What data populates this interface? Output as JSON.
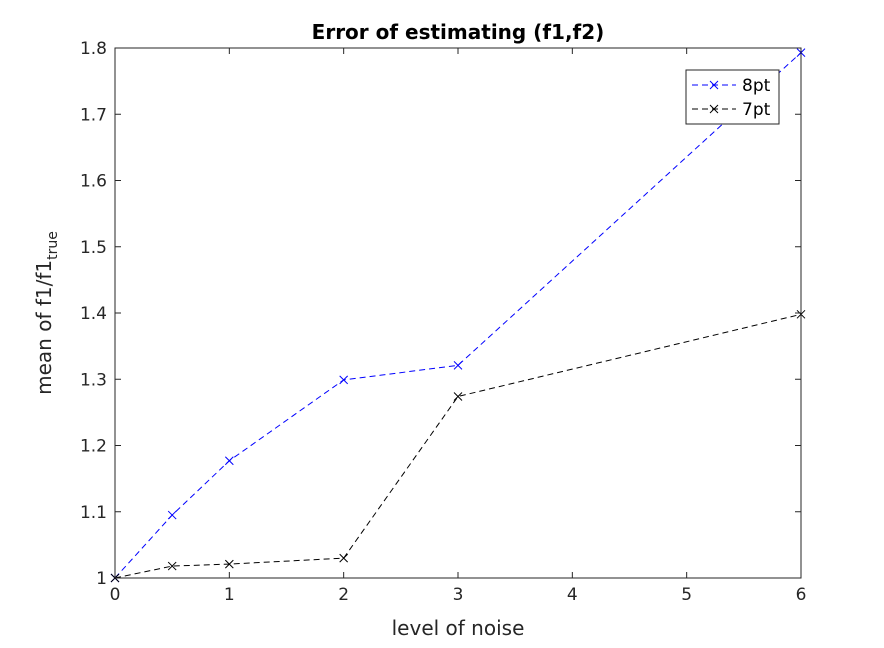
{
  "chart_data": {
    "type": "line",
    "title": "Error of estimating (f1,f2)",
    "xlabel": "level of noise",
    "ylabel": {
      "main": "mean of f1/f1",
      "subscript": "true"
    },
    "xlim": [
      0,
      6
    ],
    "ylim": [
      1,
      1.8
    ],
    "xticks": [
      "0",
      "1",
      "2",
      "3",
      "4",
      "5",
      "6"
    ],
    "yticks": [
      "1",
      "1.1",
      "1.2",
      "1.3",
      "1.4",
      "1.5",
      "1.6",
      "1.7",
      "1.8"
    ],
    "grid": false,
    "legend_position": "top-right",
    "series": [
      {
        "name": "8pt",
        "color": "#0000ff",
        "line_style": "dashed",
        "marker": "x",
        "x": [
          0,
          0.5,
          1,
          2,
          3,
          6
        ],
        "y": [
          1.0,
          1.095,
          1.177,
          1.299,
          1.321,
          1.793
        ]
      },
      {
        "name": "7pt",
        "color": "#000000",
        "line_style": "dashed",
        "marker": "x",
        "x": [
          0,
          0.5,
          1,
          2,
          3,
          6
        ],
        "y": [
          1.0,
          1.018,
          1.021,
          1.03,
          1.274,
          1.398
        ]
      }
    ]
  }
}
